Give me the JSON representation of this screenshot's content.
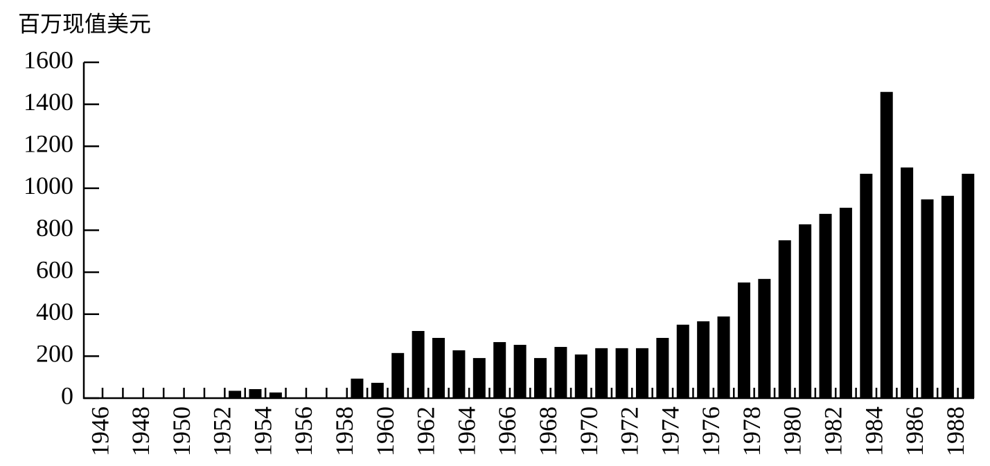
{
  "chart_data": {
    "type": "bar",
    "y_label": "百万现值美元",
    "categories": [
      "1946",
      null,
      "1948",
      null,
      "1950",
      null,
      "1952",
      null,
      "1954",
      null,
      "1956",
      null,
      "1958",
      null,
      "1960",
      null,
      "1962",
      null,
      "1964",
      null,
      "1966",
      null,
      "1968",
      null,
      "1970",
      null,
      "1972",
      null,
      "1974",
      null,
      "1976",
      null,
      "1978",
      null,
      "1980",
      null,
      "1982",
      null,
      "1984",
      null,
      "1986",
      null,
      "1988"
    ],
    "values": [
      0,
      0,
      0,
      0,
      0,
      0,
      35,
      43,
      27,
      0,
      0,
      0,
      93,
      73,
      215,
      320,
      287,
      228,
      191,
      267,
      254,
      191,
      244,
      208,
      238,
      238,
      238,
      287,
      350,
      366,
      389,
      551,
      568,
      752,
      828,
      878,
      907,
      1069,
      1459,
      1099,
      947,
      964,
      1069
    ],
    "color": "#000000",
    "ylim": [
      0,
      1600
    ],
    "yticks": [
      0,
      200,
      400,
      600,
      800,
      1000,
      1200,
      1400,
      1600
    ],
    "grid": false
  }
}
